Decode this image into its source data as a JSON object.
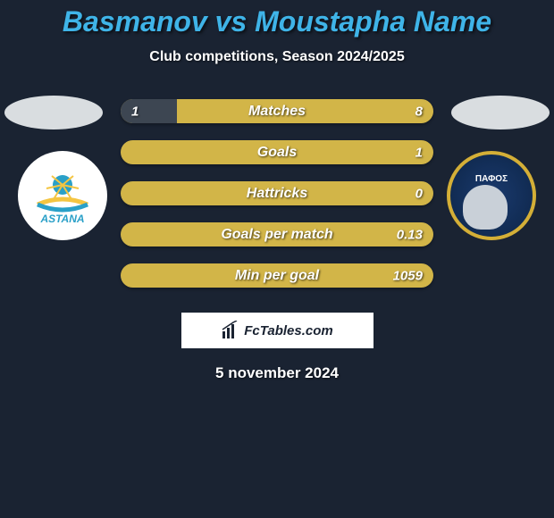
{
  "title": {
    "text": "Basmanov vs Moustapha Name",
    "color": "#3fb4e8",
    "fontsize": 32
  },
  "subtitle": {
    "text": "Club competitions, Season 2024/2025",
    "fontsize": 16
  },
  "date": {
    "text": "5 november 2024",
    "fontsize": 17
  },
  "brand": {
    "text": "FcTables.com",
    "fontsize": 15
  },
  "side_oval_color": "#d9dde0",
  "club_left": {
    "name": "ASTANA",
    "color": "#2aa0c8"
  },
  "club_right": {
    "name": "ΠΑΦΟΣ",
    "bg": "#12315c",
    "ring": "#d4af37"
  },
  "bar_style": {
    "label_fontsize": 16,
    "val_fontsize": 15,
    "bg_color": "#d2b548",
    "left_fill_color": "#3d4652",
    "right_fill_color": "#d2b548"
  },
  "bars": [
    {
      "label": "Matches",
      "left_val": "1",
      "right_val": "8",
      "left_pct": 18,
      "right_pct": 82
    },
    {
      "label": "Goals",
      "left_val": "",
      "right_val": "1",
      "left_pct": 0,
      "right_pct": 100
    },
    {
      "label": "Hattricks",
      "left_val": "",
      "right_val": "0",
      "left_pct": 0,
      "right_pct": 100
    },
    {
      "label": "Goals per match",
      "left_val": "",
      "right_val": "0.13",
      "left_pct": 0,
      "right_pct": 100
    },
    {
      "label": "Min per goal",
      "left_val": "",
      "right_val": "1059",
      "left_pct": 0,
      "right_pct": 100
    }
  ]
}
